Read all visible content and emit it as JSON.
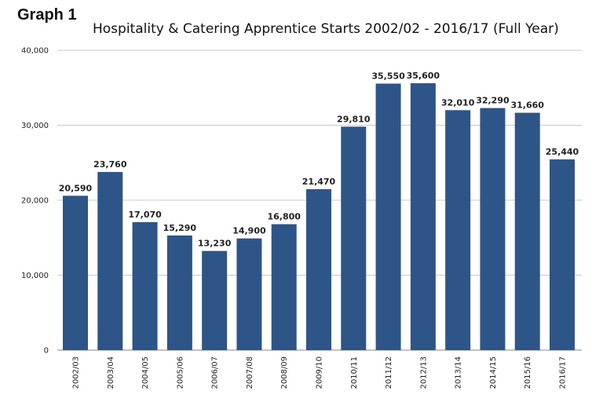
{
  "graph_label": "Graph 1",
  "chart_data": {
    "type": "bar",
    "title": "Hospitality & Catering Apprentice Starts 2002/02 - 2016/17 (Full Year)",
    "xlabel": "",
    "ylabel": "",
    "ylim": [
      0,
      40000
    ],
    "yticks": [
      0,
      10000,
      20000,
      30000,
      40000
    ],
    "ytick_labels": [
      "0",
      "10,000",
      "20,000",
      "30,000",
      "40,000"
    ],
    "grid": true,
    "legend": "none",
    "bar_color": "#2e5588",
    "categories": [
      "2002/03",
      "2003/04",
      "2004/05",
      "2005/06",
      "2006/07",
      "2007/08",
      "2008/09",
      "2009/10",
      "2010/11",
      "2011/12",
      "2012/13",
      "2013/14",
      "2014/15",
      "2015/16",
      "2016/17"
    ],
    "values": [
      20590,
      23760,
      17070,
      15290,
      13230,
      14900,
      16800,
      21470,
      29810,
      35550,
      35600,
      32010,
      32290,
      31660,
      25440
    ],
    "data_labels": [
      "20,590",
      "23,760",
      "17,070",
      "15,290",
      "13,230",
      "14,900",
      "16,800",
      "21,470",
      "29,810",
      "35,550",
      "35,600",
      "32,010",
      "32,290",
      "31,660",
      "25,440"
    ]
  }
}
